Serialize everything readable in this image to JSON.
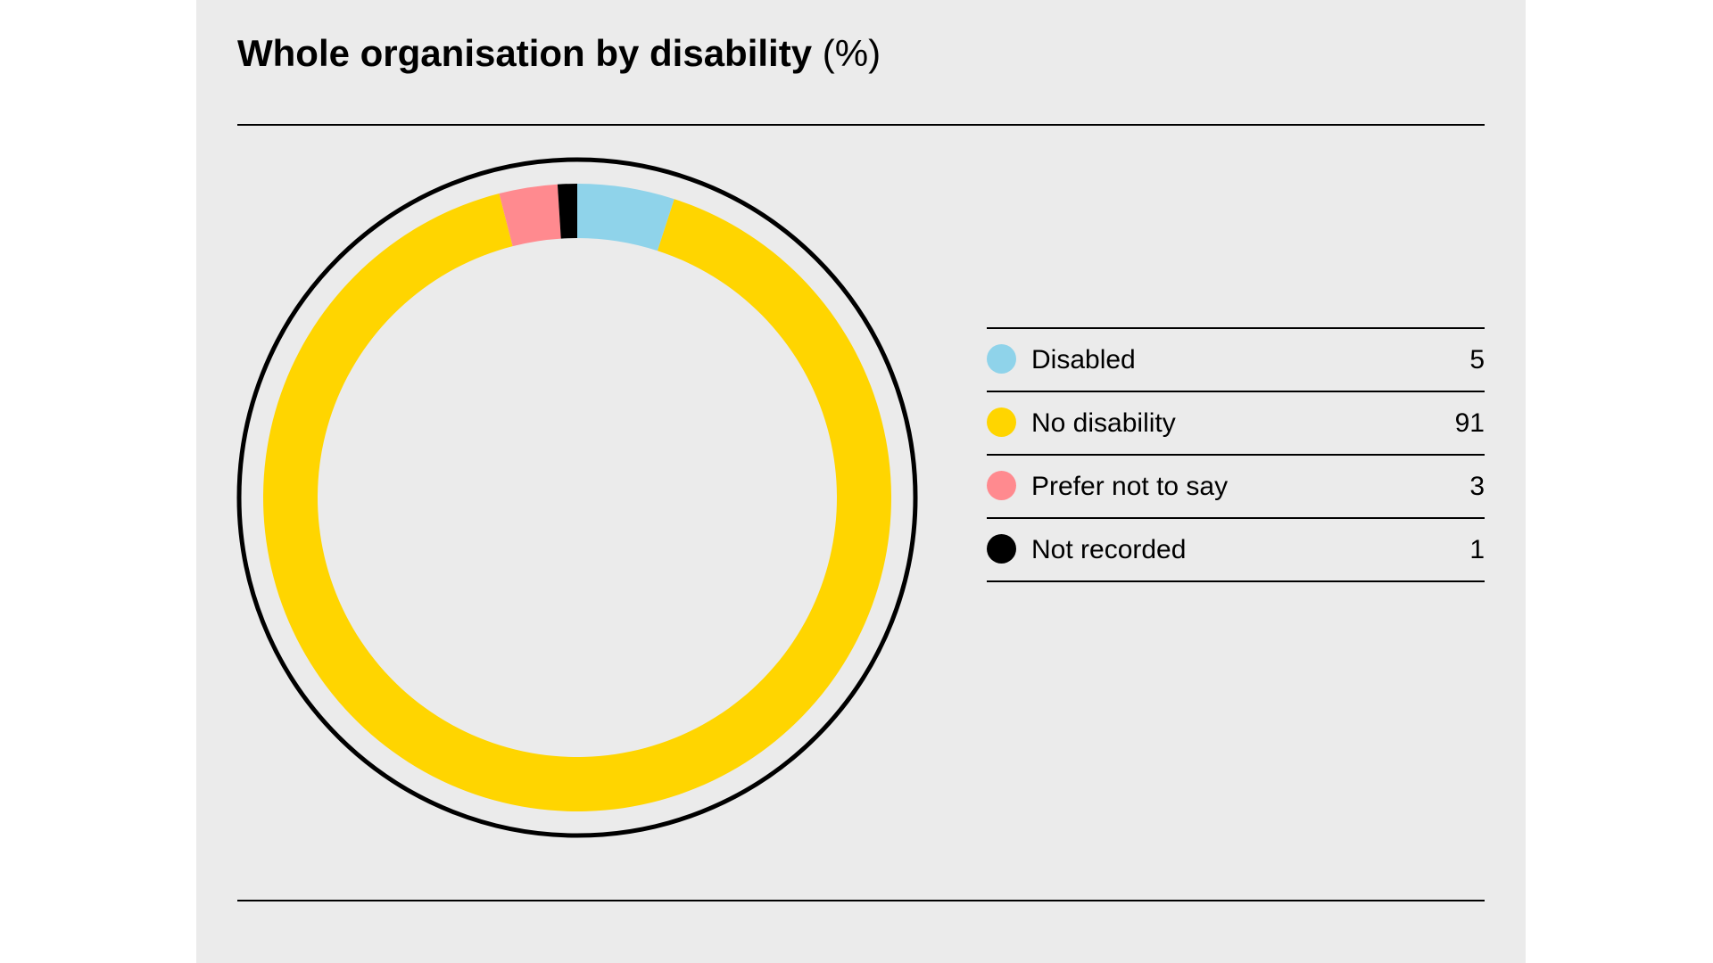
{
  "chart_data": {
    "type": "pie",
    "title": "Whole organisation by disability",
    "unit": "(%)",
    "categories": [
      "Disabled",
      "No disability",
      "Prefer not to say",
      "Not recorded"
    ],
    "values": [
      5,
      91,
      3,
      1
    ],
    "colors": [
      "#8fd3ea",
      "#ffd500",
      "#ff8a8f",
      "#000000"
    ],
    "legend_position": "right",
    "style": "donut"
  },
  "colors": {
    "background": "#ebebeb",
    "rule": "#000000"
  }
}
